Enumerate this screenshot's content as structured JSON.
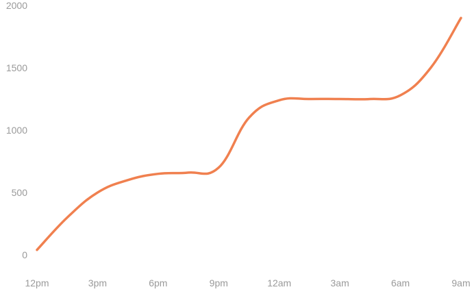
{
  "chart_data": {
    "type": "line",
    "title": "",
    "xlabel": "",
    "ylabel": "",
    "x": [
      "12pm",
      "",
      "3pm",
      "",
      "6pm",
      "",
      "9pm",
      "",
      "12am",
      "",
      "3am",
      "",
      "6am",
      "",
      "9am"
    ],
    "x_tick_labels": [
      "12pm",
      "3pm",
      "6pm",
      "9pm",
      "12am",
      "3am",
      "6am",
      "9am"
    ],
    "y_tick_labels": [
      "0",
      "500",
      "1000",
      "1500",
      "2000"
    ],
    "ylim": [
      0,
      2000
    ],
    "grid": false,
    "legend": "none",
    "line_style": "smooth",
    "colors": {
      "line": "#f0804f",
      "tick_text": "#9a9a9a"
    },
    "series": [
      {
        "values": [
          40,
          300,
          500,
          600,
          650,
          660,
          700,
          1100,
          1240,
          1250,
          1250,
          1250,
          1280,
          1500,
          1900
        ]
      }
    ]
  }
}
